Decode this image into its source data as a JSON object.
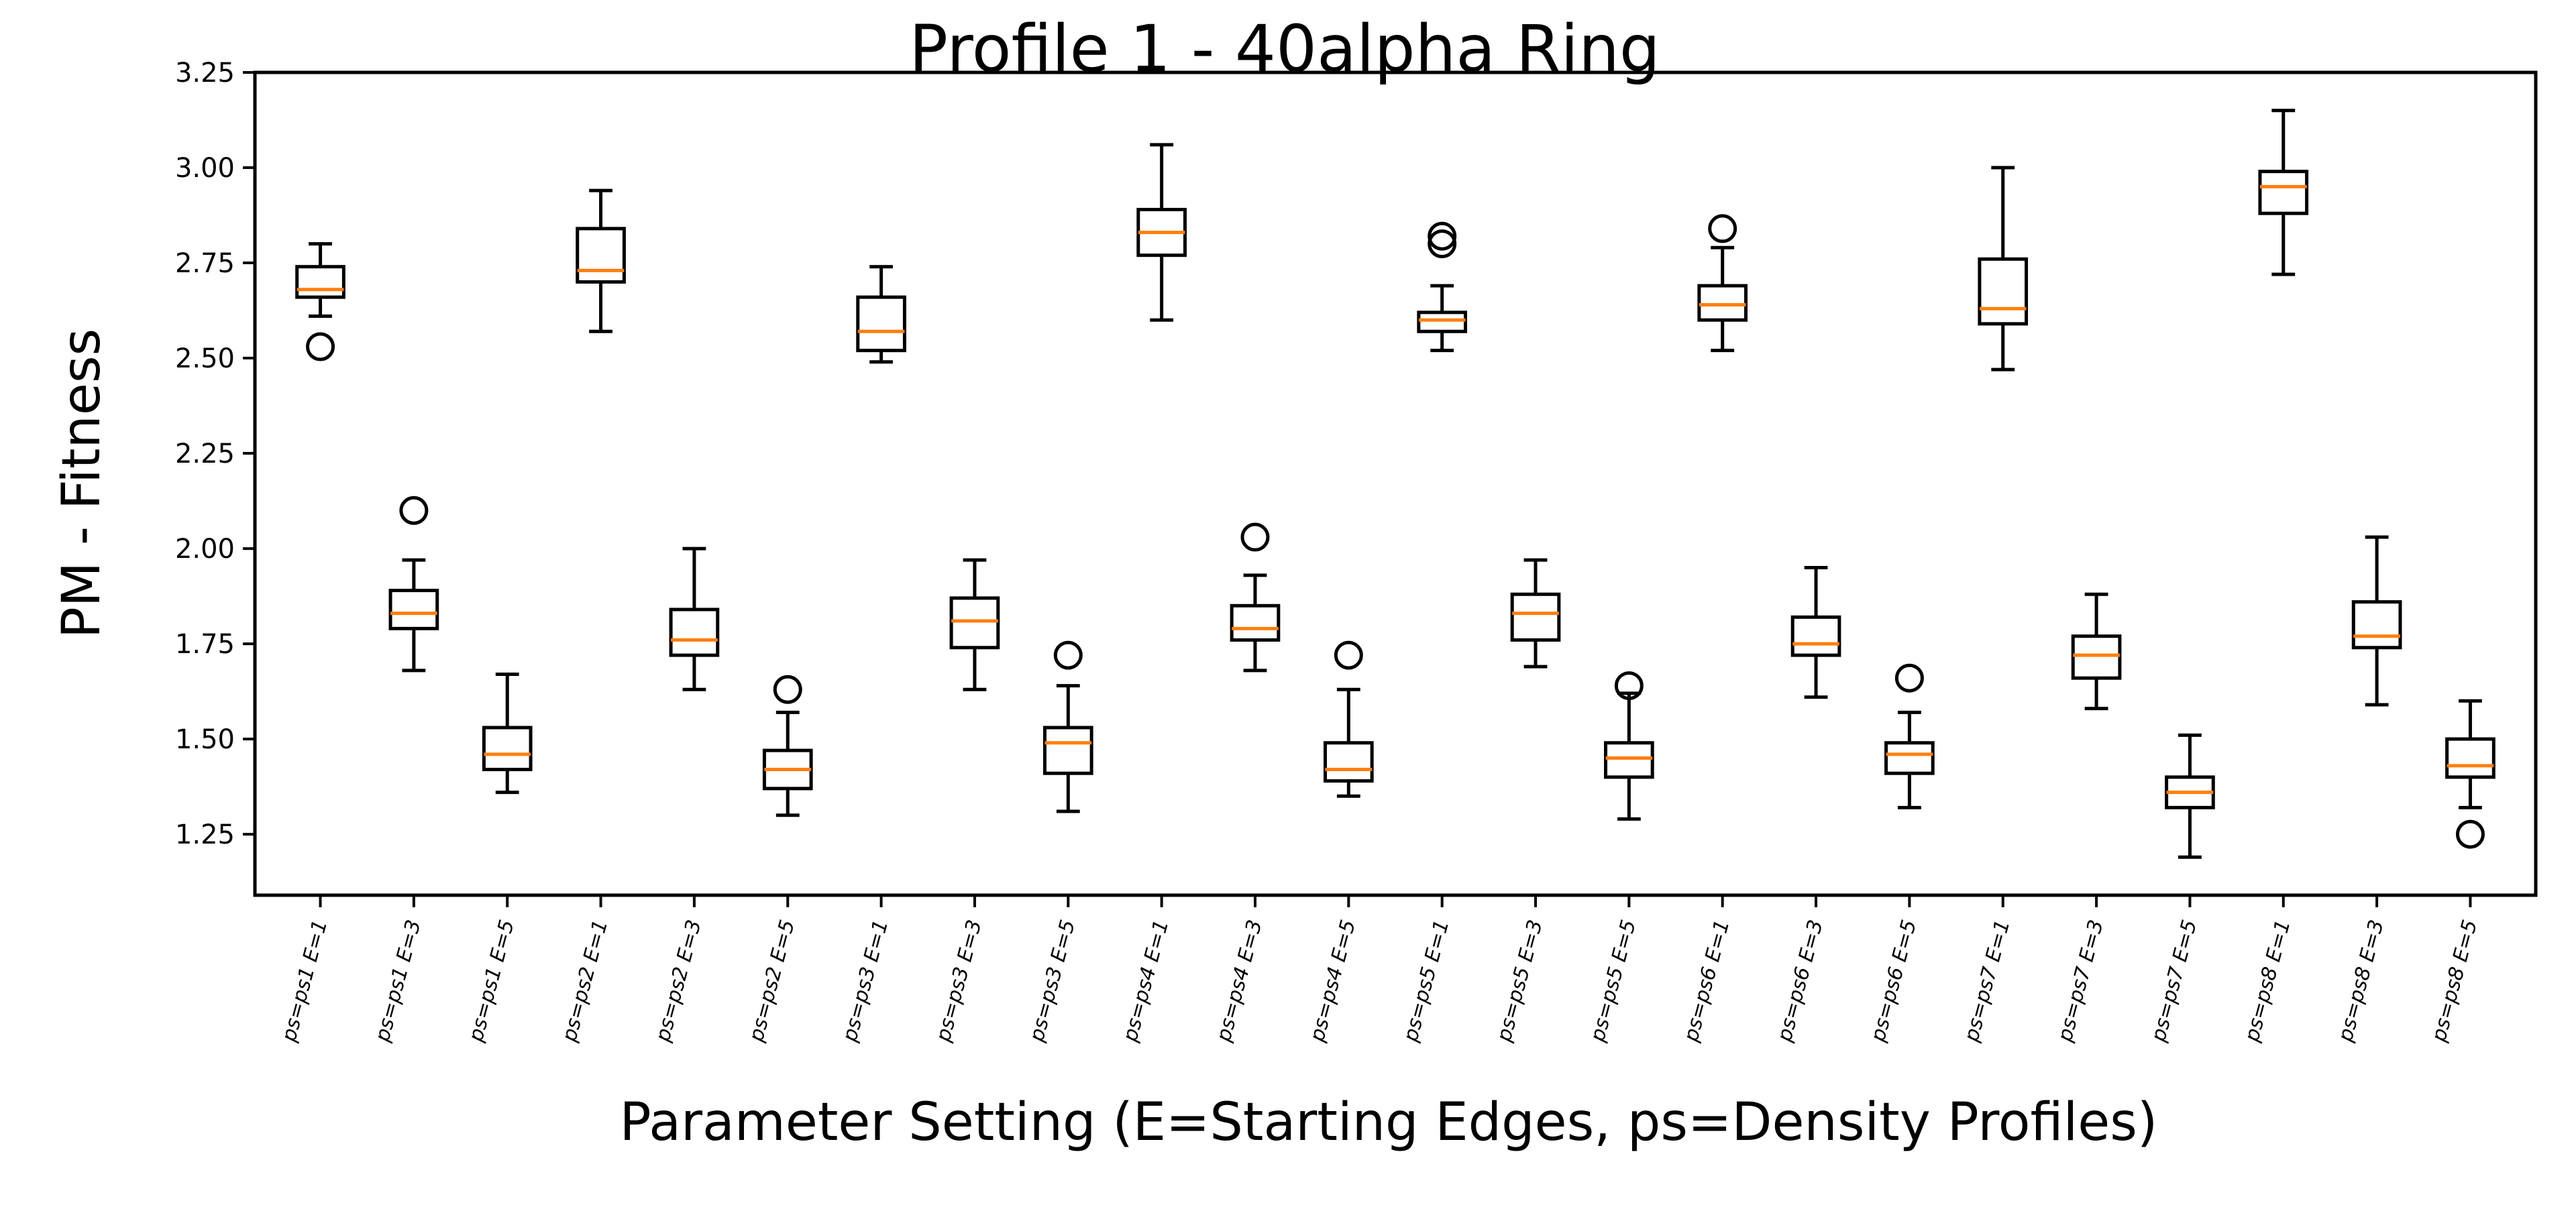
{
  "chart_data": {
    "type": "box",
    "title": "Profile 1 - 40alpha Ring",
    "xlabel": "Parameter Setting (E=Starting Edges, ps=Density Profiles)",
    "ylabel": "PM - Fitness",
    "ylim": [
      1.09,
      3.25
    ],
    "yticks": [
      "1.25",
      "1.50",
      "1.75",
      "2.00",
      "2.25",
      "2.50",
      "2.75",
      "3.00",
      "3.25"
    ],
    "grid": false,
    "colors": {
      "box": "#000000",
      "median": "#ff7f0e",
      "axes": "#000000"
    },
    "categories": [
      "ps=ps1 E=1",
      "ps=ps1 E=3",
      "ps=ps1 E=5",
      "ps=ps2 E=1",
      "ps=ps2 E=3",
      "ps=ps2 E=5",
      "ps=ps3 E=1",
      "ps=ps3 E=3",
      "ps=ps3 E=5",
      "ps=ps4 E=1",
      "ps=ps4 E=3",
      "ps=ps4 E=5",
      "ps=ps5 E=1",
      "ps=ps5 E=3",
      "ps=ps5 E=5",
      "ps=ps6 E=1",
      "ps=ps6 E=3",
      "ps=ps6 E=5",
      "ps=ps7 E=1",
      "ps=ps7 E=3",
      "ps=ps7 E=5",
      "ps=ps8 E=1",
      "ps=ps8 E=3",
      "ps=ps8 E=5"
    ],
    "boxes": [
      {
        "whislo": 2.61,
        "q1": 2.66,
        "med": 2.68,
        "q3": 2.74,
        "whishi": 2.8,
        "fliers": [
          2.53
        ]
      },
      {
        "whislo": 1.68,
        "q1": 1.79,
        "med": 1.83,
        "q3": 1.89,
        "whishi": 1.97,
        "fliers": [
          2.1
        ]
      },
      {
        "whislo": 1.36,
        "q1": 1.42,
        "med": 1.46,
        "q3": 1.53,
        "whishi": 1.67,
        "fliers": []
      },
      {
        "whislo": 2.57,
        "q1": 2.7,
        "med": 2.73,
        "q3": 2.84,
        "whishi": 2.94,
        "fliers": []
      },
      {
        "whislo": 1.63,
        "q1": 1.72,
        "med": 1.76,
        "q3": 1.84,
        "whishi": 2.0,
        "fliers": []
      },
      {
        "whislo": 1.3,
        "q1": 1.37,
        "med": 1.42,
        "q3": 1.47,
        "whishi": 1.57,
        "fliers": [
          1.63
        ]
      },
      {
        "whislo": 2.49,
        "q1": 2.52,
        "med": 2.57,
        "q3": 2.66,
        "whishi": 2.74,
        "fliers": []
      },
      {
        "whislo": 1.63,
        "q1": 1.74,
        "med": 1.81,
        "q3": 1.87,
        "whishi": 1.97,
        "fliers": []
      },
      {
        "whislo": 1.31,
        "q1": 1.41,
        "med": 1.49,
        "q3": 1.53,
        "whishi": 1.64,
        "fliers": [
          1.72
        ]
      },
      {
        "whislo": 2.6,
        "q1": 2.77,
        "med": 2.83,
        "q3": 2.89,
        "whishi": 3.06,
        "fliers": []
      },
      {
        "whislo": 1.68,
        "q1": 1.76,
        "med": 1.79,
        "q3": 1.85,
        "whishi": 1.93,
        "fliers": [
          2.03
        ]
      },
      {
        "whislo": 1.35,
        "q1": 1.39,
        "med": 1.42,
        "q3": 1.49,
        "whishi": 1.63,
        "fliers": [
          1.72
        ]
      },
      {
        "whislo": 2.52,
        "q1": 2.57,
        "med": 2.6,
        "q3": 2.62,
        "whishi": 2.69,
        "fliers": [
          2.8,
          2.82
        ]
      },
      {
        "whislo": 1.69,
        "q1": 1.76,
        "med": 1.83,
        "q3": 1.88,
        "whishi": 1.97,
        "fliers": []
      },
      {
        "whislo": 1.29,
        "q1": 1.4,
        "med": 1.45,
        "q3": 1.49,
        "whishi": 1.62,
        "fliers": [
          1.64
        ]
      },
      {
        "whislo": 2.52,
        "q1": 2.6,
        "med": 2.64,
        "q3": 2.69,
        "whishi": 2.79,
        "fliers": [
          2.84
        ]
      },
      {
        "whislo": 1.61,
        "q1": 1.72,
        "med": 1.75,
        "q3": 1.82,
        "whishi": 1.95,
        "fliers": []
      },
      {
        "whislo": 1.32,
        "q1": 1.41,
        "med": 1.46,
        "q3": 1.49,
        "whishi": 1.57,
        "fliers": [
          1.66
        ]
      },
      {
        "whislo": 2.47,
        "q1": 2.59,
        "med": 2.63,
        "q3": 2.76,
        "whishi": 3.0,
        "fliers": []
      },
      {
        "whislo": 1.58,
        "q1": 1.66,
        "med": 1.72,
        "q3": 1.77,
        "whishi": 1.88,
        "fliers": []
      },
      {
        "whislo": 1.19,
        "q1": 1.32,
        "med": 1.36,
        "q3": 1.4,
        "whishi": 1.51,
        "fliers": []
      },
      {
        "whislo": 2.72,
        "q1": 2.88,
        "med": 2.95,
        "q3": 2.99,
        "whishi": 3.15,
        "fliers": []
      },
      {
        "whislo": 1.59,
        "q1": 1.74,
        "med": 1.77,
        "q3": 1.86,
        "whishi": 2.03,
        "fliers": []
      },
      {
        "whislo": 1.32,
        "q1": 1.4,
        "med": 1.43,
        "q3": 1.5,
        "whishi": 1.6,
        "fliers": [
          1.25
        ]
      }
    ]
  }
}
